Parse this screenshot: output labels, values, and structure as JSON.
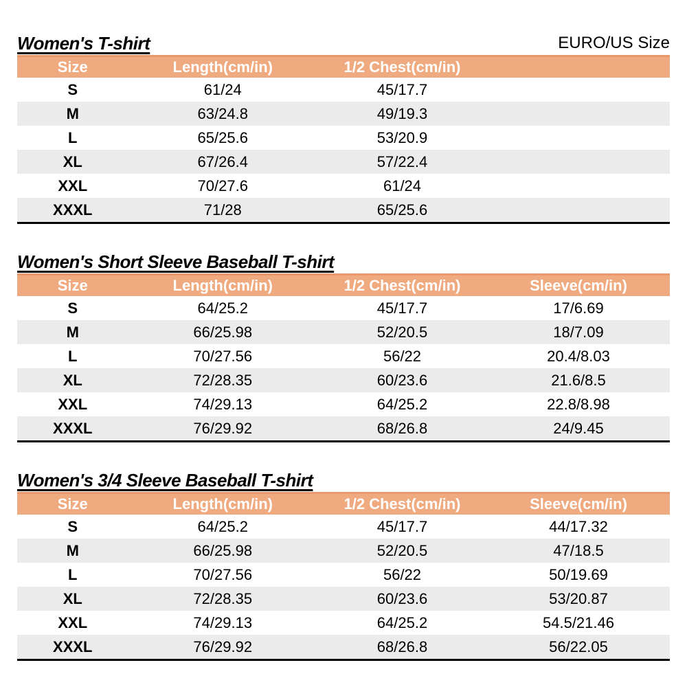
{
  "page": {
    "size_standard_label": "EURO/US Size"
  },
  "colors": {
    "header_bg": "#f0aa80",
    "header_top_border": "#e9996b",
    "alt_row_bg": "#ebebeb",
    "table_bottom_border": "#000000",
    "header_text": "#ffffff",
    "body_text": "#000000"
  },
  "tables": [
    {
      "title": "Women's T-shirt",
      "columns": [
        "Size",
        "Length(cm/in)",
        "1/2 Chest(cm/in)"
      ],
      "rows": [
        [
          "S",
          "61/24",
          "45/17.7"
        ],
        [
          "M",
          "63/24.8",
          "49/19.3"
        ],
        [
          "L",
          "65/25.6",
          "53/20.9"
        ],
        [
          "XL",
          "67/26.4",
          "57/22.4"
        ],
        [
          "XXL",
          "70/27.6",
          "61/24"
        ],
        [
          "XXXL",
          "71/28",
          "65/25.6"
        ]
      ]
    },
    {
      "title": "Women's Short Sleeve Baseball T-shirt",
      "columns": [
        "Size",
        "Length(cm/in)",
        "1/2 Chest(cm/in)",
        "Sleeve(cm/in)"
      ],
      "rows": [
        [
          "S",
          "64/25.2",
          "45/17.7",
          "17/6.69"
        ],
        [
          "M",
          "66/25.98",
          "52/20.5",
          "18/7.09"
        ],
        [
          "L",
          "70/27.56",
          "56/22",
          "20.4/8.03"
        ],
        [
          "XL",
          "72/28.35",
          "60/23.6",
          "21.6/8.5"
        ],
        [
          "XXL",
          "74/29.13",
          "64/25.2",
          "22.8/8.98"
        ],
        [
          "XXXL",
          "76/29.92",
          "68/26.8",
          "24/9.45"
        ]
      ]
    },
    {
      "title": "Women's 3/4 Sleeve Baseball T-shirt",
      "columns": [
        "Size",
        "Length(cm/in)",
        "1/2 Chest(cm/in)",
        "Sleeve(cm/in)"
      ],
      "rows": [
        [
          "S",
          "64/25.2",
          "45/17.7",
          "44/17.32"
        ],
        [
          "M",
          "66/25.98",
          "52/20.5",
          "47/18.5"
        ],
        [
          "L",
          "70/27.56",
          "56/22",
          "50/19.69"
        ],
        [
          "XL",
          "72/28.35",
          "60/23.6",
          "53/20.87"
        ],
        [
          "XXL",
          "74/29.13",
          "64/25.2",
          "54.5/21.46"
        ],
        [
          "XXXL",
          "76/29.92",
          "68/26.8",
          "56/22.05"
        ]
      ]
    }
  ]
}
